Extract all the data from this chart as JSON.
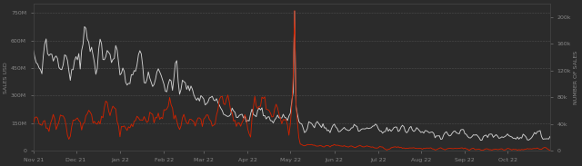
{
  "background_color": "#2b2b2b",
  "plot_bg_color": "#2b2b2b",
  "white_line_color": "#d0d0d0",
  "red_line_color": "#cc2200",
  "grid_color": "#666666",
  "axis_color": "#888888",
  "left_ylabel": "SALES USD",
  "right_ylabel": "NUMBER OF SALES",
  "left_yticks": [
    0,
    150000000,
    300000000,
    450000000,
    600000000,
    750000000
  ],
  "left_yticklabels": [
    "0",
    "150M",
    "300M",
    "450M",
    "600M",
    "750M"
  ],
  "right_yticks": [
    0,
    40000,
    80000,
    120000,
    160000,
    200000
  ],
  "right_yticklabels": [
    "0",
    "40k",
    "80k",
    "120k",
    "160k",
    "200k"
  ],
  "xlabels": [
    "Nov 21",
    "Dec 21",
    "Jan 22",
    "Feb 22",
    "Mar 22",
    "Apr 22",
    "May 22",
    "Jun 22",
    "Jul 22",
    "Aug 22",
    "Sep 22",
    "Oct 22"
  ],
  "n_points": 365,
  "left_ylim": [
    0,
    800000000
  ],
  "right_ylim": [
    0,
    220000
  ],
  "spike_idx": 184,
  "white_spike_val": 760000000,
  "red_spike_val": 210000,
  "figsize": [
    6.4,
    1.83
  ],
  "dpi": 100
}
